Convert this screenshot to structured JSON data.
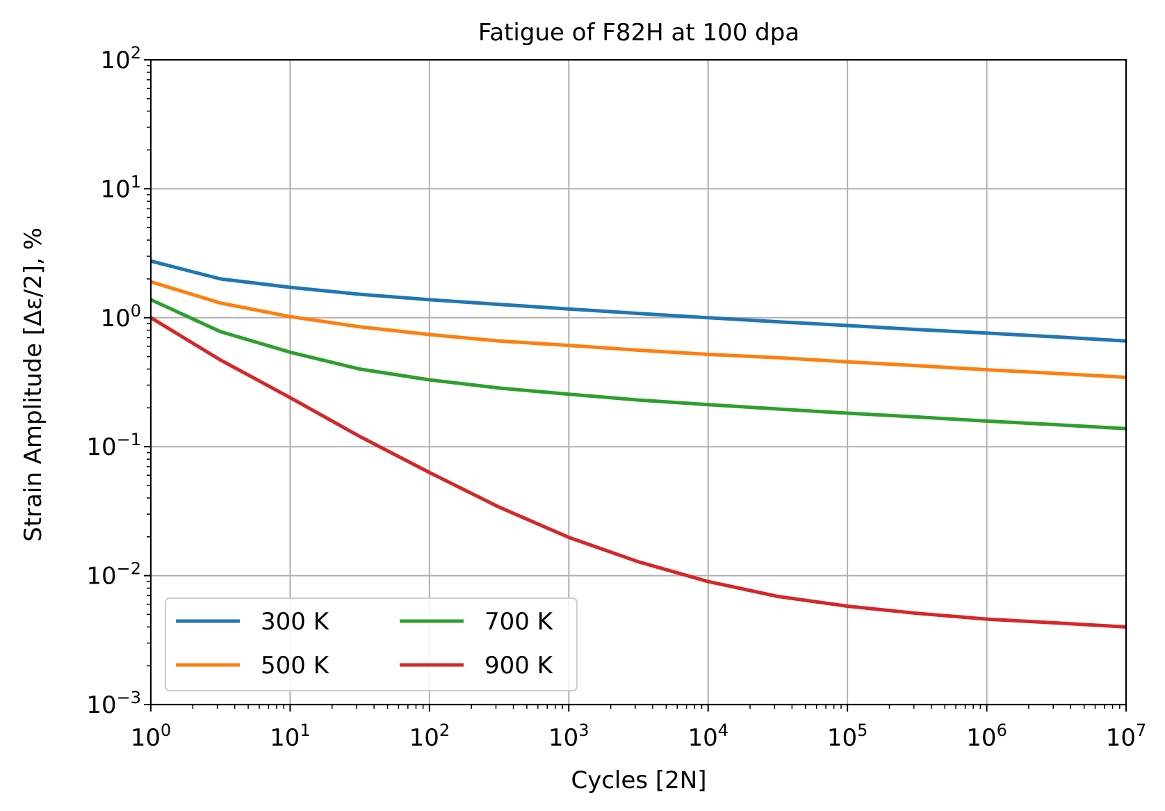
{
  "chart_data": {
    "type": "line",
    "title": "Fatigue of F82H at 100 dpa",
    "xlabel": "Cycles [2N]",
    "ylabel": "Strain Amplitude [Δε/2], %",
    "xscale": "log",
    "yscale": "log",
    "xlim": [
      1,
      10000000
    ],
    "ylim": [
      0.001,
      100
    ],
    "grid": true,
    "legend_position": "lower-left",
    "legend_columns": 2,
    "x_ticks": [
      {
        "base": "10",
        "exp": "0"
      },
      {
        "base": "10",
        "exp": "1"
      },
      {
        "base": "10",
        "exp": "2"
      },
      {
        "base": "10",
        "exp": "3"
      },
      {
        "base": "10",
        "exp": "4"
      },
      {
        "base": "10",
        "exp": "5"
      },
      {
        "base": "10",
        "exp": "6"
      },
      {
        "base": "10",
        "exp": "7"
      }
    ],
    "y_ticks": [
      {
        "base": "10",
        "exp": "−3"
      },
      {
        "base": "10",
        "exp": "−2"
      },
      {
        "base": "10",
        "exp": "−1"
      },
      {
        "base": "10",
        "exp": "0"
      },
      {
        "base": "10",
        "exp": "1"
      },
      {
        "base": "10",
        "exp": "2"
      }
    ],
    "x": [
      1,
      3.16,
      10,
      31.6,
      100,
      316,
      1000,
      3160,
      10000,
      31600,
      100000,
      316000,
      1000000,
      3160000,
      10000000
    ],
    "series": [
      {
        "name": "300 K",
        "color": "#1f77b4",
        "values": [
          2.75,
          2.0,
          1.72,
          1.52,
          1.38,
          1.27,
          1.17,
          1.08,
          1.0,
          0.93,
          0.87,
          0.81,
          0.76,
          0.71,
          0.66
        ]
      },
      {
        "name": "500 K",
        "color": "#ff7f0e",
        "values": [
          1.9,
          1.3,
          1.02,
          0.85,
          0.74,
          0.66,
          0.61,
          0.56,
          0.52,
          0.49,
          0.455,
          0.425,
          0.395,
          0.37,
          0.345
        ]
      },
      {
        "name": "700 K",
        "color": "#2ca02c",
        "values": [
          1.38,
          0.78,
          0.54,
          0.4,
          0.33,
          0.285,
          0.255,
          0.23,
          0.212,
          0.196,
          0.182,
          0.17,
          0.158,
          0.148,
          0.138
        ]
      },
      {
        "name": "900 K",
        "color": "#d62728",
        "values": [
          1.0,
          0.47,
          0.24,
          0.12,
          0.063,
          0.034,
          0.0198,
          0.0128,
          0.009,
          0.0069,
          0.0058,
          0.0051,
          0.0046,
          0.0043,
          0.004
        ]
      }
    ]
  },
  "colors": {
    "grid": "#b0b0b0",
    "axes": "#000000",
    "legend_border": "#cccccc"
  }
}
